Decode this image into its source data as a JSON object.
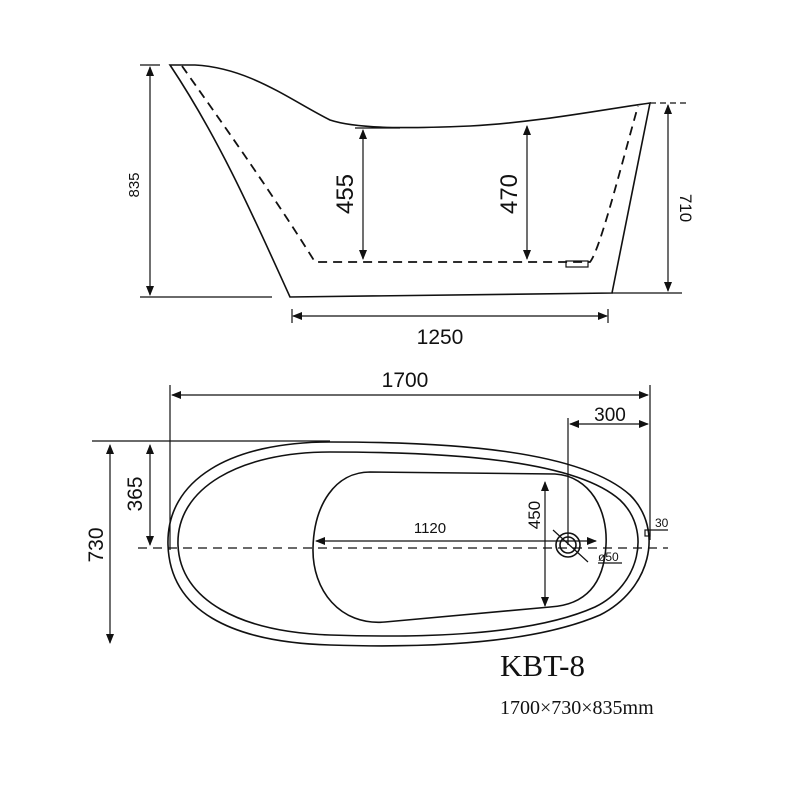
{
  "side_view": {
    "overall_height": "835",
    "depth_left": "455",
    "depth_right": "470",
    "rim_height_right": "710",
    "base_length": "1250"
  },
  "top_view": {
    "overall_length": "1700",
    "drain_offset": "300",
    "half_width": "365",
    "overall_width": "730",
    "basin_length": "1120",
    "basin_width": "450",
    "drain_diameter": "ø50",
    "overflow_gap": "30"
  },
  "model": {
    "name": "KBT-8",
    "dimensions": "1700×730×835mm"
  }
}
